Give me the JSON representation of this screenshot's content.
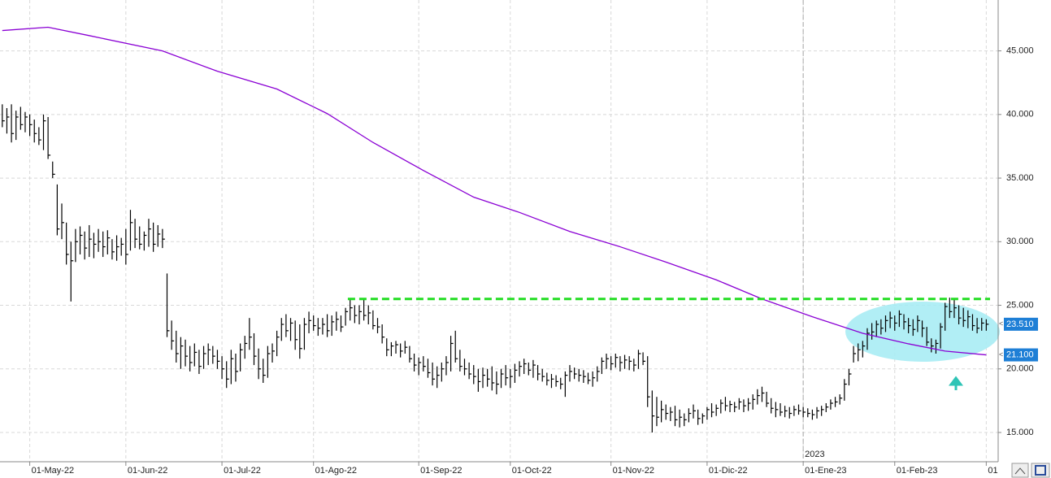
{
  "chart_data": {
    "type": "ohlc",
    "xlim": [
      -0.5,
      217.6
    ],
    "ylim": [
      12.7,
      49.0
    ],
    "xticks": [
      {
        "value": 6,
        "label": "01-May-22"
      },
      {
        "value": 27,
        "label": "01-Jun-22"
      },
      {
        "value": 48,
        "label": "01-Jul-22"
      },
      {
        "value": 68,
        "label": "01-Ago-22"
      },
      {
        "value": 91,
        "label": "01-Sep-22"
      },
      {
        "value": 111,
        "label": "01-Oct-22"
      },
      {
        "value": 133,
        "label": "01-Nov-22"
      },
      {
        "value": 154,
        "label": "01-Dic-22"
      },
      {
        "value": 175,
        "label": "01-Ene-23"
      },
      {
        "value": 195,
        "label": "01-Feb-23"
      },
      {
        "value": 215,
        "label": "01"
      }
    ],
    "yticks": [
      {
        "value": 15,
        "label": "15.000"
      },
      {
        "value": 20,
        "label": "20.000"
      },
      {
        "value": 25,
        "label": "25.000"
      },
      {
        "value": 30,
        "label": "30.000"
      },
      {
        "value": 35,
        "label": "35.000"
      },
      {
        "value": 40,
        "label": "40.000"
      },
      {
        "value": 45,
        "label": "45.000"
      }
    ],
    "grid": true,
    "year_label": {
      "value": 175,
      "label": "2023"
    },
    "color": "#000000",
    "high": [
      40.8,
      40.5,
      40.8,
      40.3,
      40.6,
      40.2,
      40,
      39.6,
      39,
      40,
      39.8,
      36.3,
      34.5,
      33,
      31.5,
      30,
      31,
      31.2,
      30.8,
      31.3,
      30.7,
      31,
      30.8,
      30.9,
      30.2,
      30.5,
      30.3,
      31,
      32.5,
      31.8,
      31.2,
      30.8,
      31.8,
      31.5,
      31.3,
      31,
      27.5,
      23.8,
      23,
      22.5,
      22.3,
      21.8,
      22,
      21.5,
      21.8,
      22,
      21.8,
      21.5,
      21,
      20.6,
      21.5,
      21.2,
      22,
      22.6,
      24,
      22.8,
      21.6,
      20.8,
      21.8,
      22,
      23,
      24,
      24.3,
      24,
      23.8,
      23.5,
      24,
      24.5,
      24.2,
      24,
      24,
      24.3,
      24.2,
      24.5,
      24.2,
      24.8,
      25.5,
      25,
      25,
      25.5,
      25,
      24.6,
      24,
      23.5,
      22.4,
      22.1,
      22.2,
      22,
      22.2,
      21.8,
      21.2,
      20.9,
      21,
      20.8,
      20.5,
      20.2,
      20.5,
      21,
      22.6,
      23,
      21.5,
      20.8,
      20.5,
      20.3,
      20,
      20.1,
      20,
      20.2,
      19.8,
      20,
      20.3,
      20,
      20.4,
      20.6,
      20.8,
      20.5,
      20.7,
      20.3,
      20,
      19.7,
      19.6,
      19.5,
      19.3,
      19.8,
      20.3,
      20.1,
      20,
      19.9,
      19.7,
      19.8,
      20.2,
      20.9,
      21.2,
      21,
      21.2,
      21,
      21.1,
      21,
      20.8,
      21.5,
      21.3,
      21,
      18.3,
      17.8,
      17.5,
      17.2,
      17,
      17.1,
      16.8,
      16.5,
      16.9,
      17.2,
      16.8,
      16.5,
      17,
      17.3,
      17.2,
      17.6,
      17.8,
      17.5,
      17.4,
      17.7,
      17.6,
      17.7,
      18,
      18.4,
      18.6,
      18.2,
      17.7,
      17.4,
      17.3,
      17.1,
      17,
      17.1,
      17.2,
      17,
      16.9,
      16.8,
      17,
      17.1,
      17.3,
      17.6,
      17.8,
      18,
      19.2,
      20,
      21.8,
      22,
      22.2,
      23.2,
      23.6,
      23.8,
      23.9,
      24.2,
      24.5,
      24.2,
      24.6,
      24.3,
      24,
      23.9,
      24.2,
      23.8,
      23.3,
      22.4,
      22.3,
      23.6,
      25.2,
      25.6,
      25.5,
      25,
      24.8,
      24.6,
      24.3,
      24,
      24,
      23.9
    ],
    "low": [
      39,
      38.5,
      37.8,
      38,
      38.8,
      38.6,
      38.3,
      37.8,
      37.6,
      37.2,
      36.5,
      35,
      30.5,
      30.2,
      28.2,
      25.3,
      28.4,
      29,
      28.6,
      28.8,
      28.7,
      29.2,
      28.8,
      29,
      28.6,
      28.5,
      28.9,
      28.2,
      29.3,
      29.5,
      29.4,
      29.3,
      29.6,
      29.2,
      29.6,
      29.5,
      22.5,
      21.5,
      20.5,
      20,
      20.2,
      19.8,
      20.2,
      19.6,
      20,
      20.3,
      20.4,
      20,
      19.2,
      18.5,
      18.8,
      19,
      19.8,
      20.8,
      21.5,
      20.3,
      19.2,
      18.9,
      19.3,
      20.5,
      21,
      22.2,
      22.5,
      22.2,
      21.5,
      20.8,
      21.5,
      22.8,
      23,
      22.6,
      22.7,
      22.5,
      22.6,
      23,
      22.9,
      23.4,
      23.8,
      23.6,
      23.5,
      23.8,
      23.5,
      23.1,
      22.8,
      22,
      21,
      21,
      21.2,
      20.9,
      21.2,
      20.5,
      19.8,
      19.5,
      19.8,
      19.3,
      18.7,
      18.5,
      19,
      19.5,
      19.8,
      20.5,
      19.8,
      19.5,
      19.2,
      18.8,
      18.2,
      18.5,
      18.6,
      18.3,
      18,
      18.5,
      18.7,
      18.5,
      18.9,
      19.4,
      19.6,
      19.5,
      19.3,
      19.1,
      19,
      18.7,
      18.5,
      18.6,
      18.4,
      17.8,
      19,
      19.2,
      19,
      18.9,
      18.8,
      18.6,
      19,
      19.6,
      20,
      19.9,
      20.1,
      19.8,
      20,
      19.9,
      19.8,
      20,
      20.3,
      17,
      15,
      15.5,
      15.8,
      16,
      15.9,
      15.5,
      15.4,
      15.5,
      15.8,
      16.1,
      15.6,
      15.7,
      16,
      16.2,
      16.3,
      16.5,
      16.7,
      16.6,
      16.6,
      16.8,
      16.6,
      16.7,
      16.8,
      17.2,
      17.4,
      17,
      16.5,
      16.2,
      16.3,
      16.2,
      16.1,
      16.3,
      16.4,
      16.2,
      16.2,
      16,
      16.1,
      16.3,
      16.6,
      16.8,
      17,
      17.2,
      17.5,
      18.7,
      20.5,
      20.6,
      20.9,
      21.5,
      22.3,
      22.5,
      22.7,
      22.9,
      23.2,
      23,
      23.3,
      23.1,
      22.8,
      22.6,
      22.9,
      22.5,
      21.8,
      21.3,
      21.2,
      21.6,
      23,
      24,
      24,
      23.5,
      23.3,
      23.2,
      23,
      22.8,
      23,
      23
    ],
    "close": [
      39.5,
      39.8,
      38.5,
      39.8,
      39.2,
      39.8,
      39.2,
      38.5,
      38,
      39.5,
      36.8,
      35.3,
      31,
      31.5,
      29,
      28.5,
      30,
      30.5,
      29.5,
      30.2,
      29.8,
      30,
      29.6,
      30.3,
      29.2,
      29.6,
      29.8,
      29,
      31.5,
      30.2,
      29.8,
      30.5,
      31,
      29.8,
      30.6,
      30.2,
      23,
      22.2,
      21.2,
      21.8,
      21,
      20.5,
      21.3,
      20.2,
      21.2,
      21.5,
      21,
      20.6,
      20,
      19.2,
      20.8,
      19.8,
      21.5,
      22,
      22.5,
      21,
      20,
      19.5,
      21.2,
      21.4,
      22.5,
      23.5,
      23,
      23.6,
      22.3,
      21.6,
      23.5,
      23.8,
      23.4,
      23.2,
      23.5,
      23,
      23.7,
      23.9,
      23.3,
      24.5,
      24.8,
      24.2,
      24.5,
      24.2,
      24.4,
      23.4,
      23.3,
      22.5,
      21.5,
      21.8,
      21.9,
      21.4,
      21.7,
      20.8,
      20.3,
      20.5,
      20.2,
      19.7,
      19.2,
      19.5,
      20,
      20.5,
      22,
      20.8,
      20.2,
      20,
      19.6,
      19.4,
      19,
      19.5,
      19.2,
      18.9,
      18.8,
      19.6,
      19.3,
      19.4,
      19.9,
      20.2,
      20.4,
      19.9,
      20.3,
      19.6,
      19.4,
      19.1,
      19.2,
      19,
      18.8,
      19.5,
      19.8,
      19.6,
      19.5,
      19.4,
      19.1,
      19.3,
      19.8,
      20.6,
      20.8,
      20.4,
      20.9,
      20.5,
      20.7,
      20.6,
      20.3,
      21.2,
      20.6,
      17.8,
      16.3,
      16.2,
      16.8,
      16.5,
      16.6,
      16,
      16.2,
      16,
      16.5,
      16.7,
      16.1,
      16.3,
      16.8,
      16.6,
      16.9,
      17.3,
      17.1,
      17.2,
      17,
      17.4,
      17.1,
      17.3,
      17.6,
      17.9,
      18.1,
      17.3,
      16.9,
      16.8,
      16.6,
      16.7,
      16.5,
      16.8,
      16.7,
      16.6,
      16.5,
      16.4,
      16.7,
      16.8,
      17,
      17.3,
      17.4,
      17.7,
      18.8,
      19.6,
      21.2,
      21.5,
      21.8,
      22.8,
      22.9,
      23.5,
      23.2,
      23.8,
      24,
      23.6,
      24.3,
      23.7,
      23.4,
      23.1,
      23.8,
      23.2,
      22.1,
      21.8,
      22,
      23.3,
      24.9,
      24.5,
      24.8,
      24,
      23.8,
      24.1,
      23.4,
      23.2,
      23.6,
      23.51
    ],
    "ma": {
      "color": "#8a00d4",
      "x": [
        0,
        10,
        19,
        35,
        47,
        60,
        71,
        81,
        92,
        103,
        113,
        124,
        135,
        145,
        156,
        166,
        177,
        188,
        198,
        206,
        215
      ],
      "values": [
        46.6,
        46.86,
        46.2,
        45.0,
        43.4,
        42.0,
        40.07,
        37.8,
        35.6,
        33.5,
        32.3,
        30.8,
        29.6,
        28.4,
        27.0,
        25.5,
        24.1,
        22.8,
        21.97,
        21.4,
        21.1
      ]
    },
    "resistance": {
      "value": 25.5,
      "from": 75.5,
      "color": "#22dd22"
    },
    "price_labels": [
      {
        "value": 23.51,
        "label": "23.510",
        "color": "#1e7fd6"
      },
      {
        "value": 21.1,
        "label": "21.100",
        "color": "#1e7fd6"
      }
    ]
  }
}
